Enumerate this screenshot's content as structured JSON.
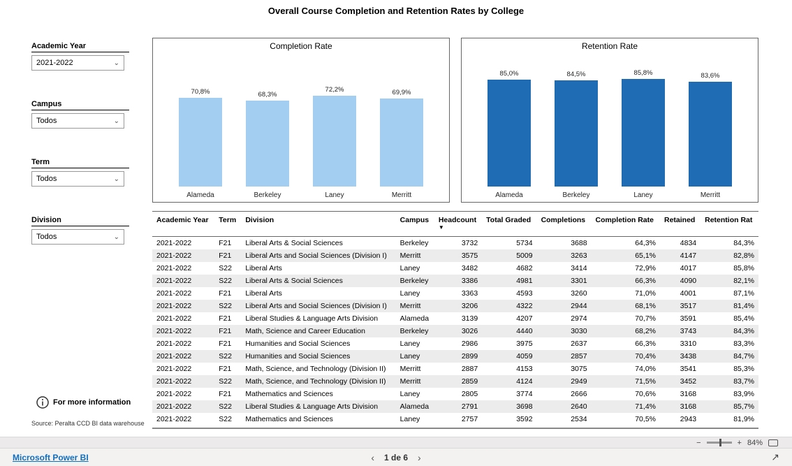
{
  "page_title": "Overall Course Completion and Retention Rates by College",
  "filters": {
    "academic_year": {
      "label": "Academic Year",
      "value": "2021-2022"
    },
    "campus": {
      "label": "Campus",
      "value": "Todos"
    },
    "term": {
      "label": "Term",
      "value": "Todos"
    },
    "division": {
      "label": "Division",
      "value": "Todos"
    }
  },
  "info_text": "For more information",
  "source_text": "Source: Peralta CCD BI data warehouse",
  "charts": {
    "completion": {
      "title": "Completion Rate",
      "type": "bar",
      "bar_color": "#a3cdf1",
      "categories": [
        "Alameda",
        "Berkeley",
        "Laney",
        "Merritt"
      ],
      "values_pct": [
        70.8,
        68.3,
        72.2,
        69.9
      ],
      "labels": [
        "70,8%",
        "68,3%",
        "72,2%",
        "69,9%"
      ],
      "y_max": 100,
      "border_color": "#666666",
      "label_fontsize": 9.5,
      "category_fontsize": 10
    },
    "retention": {
      "title": "Retention Rate",
      "type": "bar",
      "bar_color": "#1f6cb4",
      "categories": [
        "Alameda",
        "Berkeley",
        "Laney",
        "Merritt"
      ],
      "values_pct": [
        85.0,
        84.5,
        85.8,
        83.6
      ],
      "labels": [
        "85,0%",
        "84,5%",
        "85,8%",
        "83,6%"
      ],
      "y_max": 100,
      "border_color": "#666666",
      "label_fontsize": 9.5,
      "category_fontsize": 10
    }
  },
  "table": {
    "columns": [
      "Academic Year",
      "Term",
      "Division",
      "Campus",
      "Headcount",
      "Total Graded",
      "Completions",
      "Completion Rate",
      "Retained",
      "Retention Rat"
    ],
    "sorted_col": 4,
    "rows": [
      [
        "2021-2022",
        "F21",
        "Liberal Arts & Social Sciences",
        "Berkeley",
        "3732",
        "5734",
        "3688",
        "64,3%",
        "4834",
        "84,3%"
      ],
      [
        "2021-2022",
        "F21",
        "Liberal Arts and Social Sciences (Division I)",
        "Merritt",
        "3575",
        "5009",
        "3263",
        "65,1%",
        "4147",
        "82,8%"
      ],
      [
        "2021-2022",
        "S22",
        "Liberal Arts",
        "Laney",
        "3482",
        "4682",
        "3414",
        "72,9%",
        "4017",
        "85,8%"
      ],
      [
        "2021-2022",
        "S22",
        "Liberal Arts & Social Sciences",
        "Berkeley",
        "3386",
        "4981",
        "3301",
        "66,3%",
        "4090",
        "82,1%"
      ],
      [
        "2021-2022",
        "F21",
        "Liberal Arts",
        "Laney",
        "3363",
        "4593",
        "3260",
        "71,0%",
        "4001",
        "87,1%"
      ],
      [
        "2021-2022",
        "S22",
        "Liberal Arts and Social Sciences (Division I)",
        "Merritt",
        "3206",
        "4322",
        "2944",
        "68,1%",
        "3517",
        "81,4%"
      ],
      [
        "2021-2022",
        "F21",
        "Liberal Studies & Language Arts Division",
        "Alameda",
        "3139",
        "4207",
        "2974",
        "70,7%",
        "3591",
        "85,4%"
      ],
      [
        "2021-2022",
        "F21",
        "Math, Science and Career Education",
        "Berkeley",
        "3026",
        "4440",
        "3030",
        "68,2%",
        "3743",
        "84,3%"
      ],
      [
        "2021-2022",
        "F21",
        "Humanities and Social Sciences",
        "Laney",
        "2986",
        "3975",
        "2637",
        "66,3%",
        "3310",
        "83,3%"
      ],
      [
        "2021-2022",
        "S22",
        "Humanities and Social Sciences",
        "Laney",
        "2899",
        "4059",
        "2857",
        "70,4%",
        "3438",
        "84,7%"
      ],
      [
        "2021-2022",
        "F21",
        "Math, Science, and Technology (Division II)",
        "Merritt",
        "2887",
        "4153",
        "3075",
        "74,0%",
        "3541",
        "85,3%"
      ],
      [
        "2021-2022",
        "S22",
        "Math, Science, and Technology (Division II)",
        "Merritt",
        "2859",
        "4124",
        "2949",
        "71,5%",
        "3452",
        "83,7%"
      ],
      [
        "2021-2022",
        "F21",
        "Mathematics and Sciences",
        "Laney",
        "2805",
        "3774",
        "2666",
        "70,6%",
        "3168",
        "83,9%"
      ],
      [
        "2021-2022",
        "S22",
        "Liberal Studies & Language Arts Division",
        "Alameda",
        "2791",
        "3698",
        "2640",
        "71,4%",
        "3168",
        "85,7%"
      ],
      [
        "2021-2022",
        "S22",
        "Mathematics and Sciences",
        "Laney",
        "2757",
        "3592",
        "2534",
        "70,5%",
        "2943",
        "81,9%"
      ]
    ],
    "numeric_cols": [
      4,
      5,
      6,
      7,
      8,
      9
    ],
    "alt_row_bg": "#ececec"
  },
  "footer": {
    "zoom": "84%",
    "powerbi_link": "Microsoft Power BI",
    "page_indicator": "1 de 6"
  }
}
